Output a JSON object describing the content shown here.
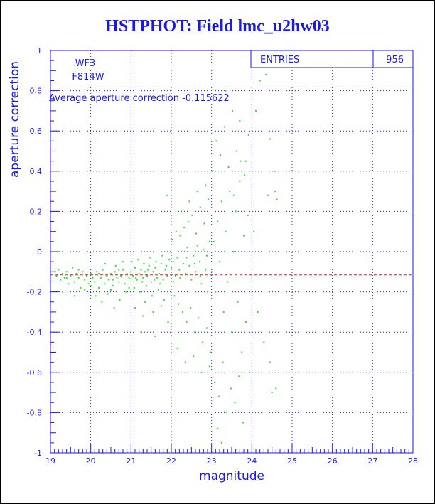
{
  "chart_data": {
    "type": "scatter",
    "title": "HSTPHOT: Field lmc_u2hw03",
    "xlabel": "magnitude",
    "ylabel": "aperture correction",
    "xlim": [
      19,
      28
    ],
    "ylim": [
      -1,
      1
    ],
    "xticks": [
      "19",
      "20",
      "21",
      "22",
      "23",
      "24",
      "25",
      "26",
      "27",
      "28"
    ],
    "yticks": [
      "-1",
      "-0.8",
      "-0.6",
      "-0.4",
      "-0.2",
      "0",
      "0.2",
      "0.4",
      "0.6",
      "0.8",
      "1"
    ],
    "grid": true,
    "camera": "WF3",
    "filter": "F814W",
    "average_label": "Average aperture correction",
    "average_value": -0.115622,
    "average_text": "-0.115622",
    "entries_label": "ENTRIES",
    "entries_value": "956",
    "colors": {
      "points": "#22e622",
      "text": "#1a1ae6",
      "average_line": "#cc2222",
      "grid": "#1a1ae6"
    },
    "points": [
      [
        19.1,
        -0.1
      ],
      [
        19.15,
        -0.12
      ],
      [
        19.2,
        -0.09
      ],
      [
        19.25,
        -0.14
      ],
      [
        19.3,
        -0.11
      ],
      [
        19.35,
        -0.13
      ],
      [
        19.4,
        -0.1
      ],
      [
        19.45,
        -0.16
      ],
      [
        19.5,
        -0.12
      ],
      [
        19.55,
        -0.08
      ],
      [
        19.6,
        -0.15
      ],
      [
        19.65,
        -0.11
      ],
      [
        19.7,
        -0.13
      ],
      [
        19.75,
        -0.18
      ],
      [
        19.8,
        -0.1
      ],
      [
        19.85,
        -0.14
      ],
      [
        19.9,
        -0.12
      ],
      [
        19.95,
        -0.16
      ],
      [
        20.0,
        -0.11
      ],
      [
        20.05,
        -0.13
      ],
      [
        19.3,
        -0.2
      ],
      [
        19.6,
        -0.22
      ],
      [
        19.85,
        -0.19
      ],
      [
        20.1,
        -0.15
      ],
      [
        20.15,
        -0.1
      ],
      [
        20.2,
        -0.18
      ],
      [
        20.25,
        -0.13
      ],
      [
        20.3,
        -0.09
      ],
      [
        20.35,
        -0.16
      ],
      [
        20.4,
        -0.12
      ],
      [
        20.45,
        -0.14
      ],
      [
        20.5,
        -0.11
      ],
      [
        20.55,
        -0.17
      ],
      [
        20.6,
        -0.1
      ],
      [
        20.65,
        -0.13
      ],
      [
        20.7,
        -0.15
      ],
      [
        20.75,
        -0.12
      ],
      [
        20.8,
        -0.09
      ],
      [
        20.85,
        -0.16
      ],
      [
        20.9,
        -0.11
      ],
      [
        20.12,
        -0.22
      ],
      [
        20.28,
        -0.25
      ],
      [
        20.42,
        -0.21
      ],
      [
        20.58,
        -0.28
      ],
      [
        20.72,
        -0.24
      ],
      [
        20.88,
        -0.2
      ],
      [
        20.35,
        -0.06
      ],
      [
        20.62,
        -0.07
      ],
      [
        20.8,
        -0.05
      ],
      [
        20.5,
        -0.19
      ],
      [
        20.95,
        -0.13
      ],
      [
        21.0,
        -0.1
      ],
      [
        21.05,
        -0.12
      ],
      [
        21.1,
        -0.08
      ],
      [
        21.15,
        -0.14
      ],
      [
        21.2,
        -0.11
      ],
      [
        21.25,
        -0.09
      ],
      [
        21.3,
        -0.13
      ],
      [
        21.35,
        -0.1
      ],
      [
        21.4,
        -0.12
      ],
      [
        21.45,
        -0.07
      ],
      [
        21.5,
        -0.15
      ],
      [
        21.55,
        -0.1
      ],
      [
        21.6,
        -0.08
      ],
      [
        21.65,
        -0.13
      ],
      [
        21.7,
        -0.11
      ],
      [
        21.75,
        -0.06
      ],
      [
        21.8,
        -0.14
      ],
      [
        21.85,
        -0.09
      ],
      [
        21.9,
        -0.12
      ],
      [
        21.02,
        -0.05
      ],
      [
        21.18,
        -0.04
      ],
      [
        21.32,
        -0.06
      ],
      [
        21.48,
        -0.03
      ],
      [
        21.62,
        -0.05
      ],
      [
        21.78,
        -0.02
      ],
      [
        21.95,
        -0.04
      ],
      [
        21.08,
        -0.18
      ],
      [
        21.22,
        -0.2
      ],
      [
        21.38,
        -0.17
      ],
      [
        21.52,
        -0.22
      ],
      [
        21.68,
        -0.19
      ],
      [
        21.82,
        -0.24
      ],
      [
        21.1,
        -0.28
      ],
      [
        21.3,
        -0.32
      ],
      [
        21.55,
        -0.3
      ],
      [
        21.75,
        -0.27
      ],
      [
        21.92,
        -0.35
      ],
      [
        21.25,
        -0.4
      ],
      [
        21.6,
        -0.42
      ],
      [
        22.0,
        -0.08
      ],
      [
        22.05,
        -0.05
      ],
      [
        22.1,
        -0.12
      ],
      [
        22.15,
        -0.03
      ],
      [
        22.2,
        -0.09
      ],
      [
        22.25,
        0.0
      ],
      [
        22.3,
        -0.06
      ],
      [
        22.35,
        -0.11
      ],
      [
        22.4,
        0.02
      ],
      [
        22.45,
        -0.07
      ],
      [
        22.5,
        -0.14
      ],
      [
        22.55,
        -0.02
      ],
      [
        22.6,
        -0.1
      ],
      [
        22.65,
        0.03
      ],
      [
        22.7,
        -0.05
      ],
      [
        22.75,
        -0.16
      ],
      [
        22.8,
        0.01
      ],
      [
        22.85,
        -0.09
      ],
      [
        22.9,
        -0.2
      ],
      [
        22.95,
        0.05
      ],
      [
        22.02,
        0.06
      ],
      [
        22.12,
        0.1
      ],
      [
        22.22,
        0.08
      ],
      [
        22.32,
        0.12
      ],
      [
        22.42,
        0.15
      ],
      [
        22.52,
        0.18
      ],
      [
        22.62,
        0.09
      ],
      [
        22.72,
        0.22
      ],
      [
        22.82,
        0.14
      ],
      [
        22.92,
        0.26
      ],
      [
        22.08,
        -0.22
      ],
      [
        22.18,
        -0.26
      ],
      [
        22.28,
        -0.3
      ],
      [
        22.38,
        -0.35
      ],
      [
        22.48,
        -0.28
      ],
      [
        22.58,
        -0.4
      ],
      [
        22.68,
        -0.33
      ],
      [
        22.78,
        -0.45
      ],
      [
        22.88,
        -0.38
      ],
      [
        22.98,
        -0.5
      ],
      [
        22.15,
        -0.48
      ],
      [
        22.35,
        -0.55
      ],
      [
        22.55,
        -0.52
      ],
      [
        22.75,
        -0.6
      ],
      [
        22.95,
        -0.57
      ],
      [
        22.25,
        0.2
      ],
      [
        22.45,
        0.25
      ],
      [
        22.65,
        0.3
      ],
      [
        22.85,
        0.33
      ],
      [
        21.9,
        0.28
      ],
      [
        23.0,
        -0.1
      ],
      [
        23.05,
        0.05
      ],
      [
        23.1,
        -0.2
      ],
      [
        23.15,
        0.15
      ],
      [
        23.2,
        -0.05
      ],
      [
        23.25,
        0.25
      ],
      [
        23.3,
        -0.3
      ],
      [
        23.35,
        0.1
      ],
      [
        23.4,
        -0.15
      ],
      [
        23.45,
        0.3
      ],
      [
        23.5,
        -0.4
      ],
      [
        23.55,
        0.0
      ],
      [
        23.6,
        0.2
      ],
      [
        23.65,
        -0.25
      ],
      [
        23.7,
        0.35
      ],
      [
        23.75,
        -0.5
      ],
      [
        23.8,
        0.08
      ],
      [
        23.85,
        -0.35
      ],
      [
        23.9,
        0.18
      ],
      [
        23.95,
        -0.6
      ],
      [
        23.02,
        0.4
      ],
      [
        23.12,
        0.55
      ],
      [
        23.22,
        0.48
      ],
      [
        23.32,
        0.62
      ],
      [
        23.42,
        0.42
      ],
      [
        23.52,
        0.7
      ],
      [
        23.62,
        0.5
      ],
      [
        23.72,
        0.45
      ],
      [
        23.82,
        0.38
      ],
      [
        23.92,
        0.58
      ],
      [
        23.08,
        -0.65
      ],
      [
        23.18,
        -0.72
      ],
      [
        23.28,
        -0.55
      ],
      [
        23.38,
        -0.8
      ],
      [
        23.48,
        -0.68
      ],
      [
        23.58,
        -0.75
      ],
      [
        23.68,
        -0.62
      ],
      [
        23.78,
        -0.85
      ],
      [
        23.15,
        -0.88
      ],
      [
        23.25,
        -0.95
      ],
      [
        23.2,
        0.75
      ],
      [
        23.35,
        0.8
      ],
      [
        23.7,
        0.65
      ],
      [
        23.55,
        0.28
      ],
      [
        23.85,
        0.45
      ],
      [
        24.1,
        0.7
      ],
      [
        24.2,
        0.85
      ],
      [
        24.35,
        0.88
      ],
      [
        24.45,
        0.56
      ],
      [
        24.55,
        0.4
      ],
      [
        24.15,
        -0.3
      ],
      [
        24.3,
        -0.45
      ],
      [
        24.45,
        -0.55
      ],
      [
        24.6,
        -0.68
      ],
      [
        24.25,
        -0.8
      ],
      [
        24.5,
        -0.7
      ],
      [
        24.4,
        0.28
      ],
      [
        24.58,
        0.3
      ],
      [
        24.62,
        0.26
      ],
      [
        24.05,
        0.1
      ],
      [
        19.4,
        -0.13
      ],
      [
        19.7,
        -0.09
      ],
      [
        20.0,
        -0.17
      ],
      [
        20.2,
        -0.11
      ],
      [
        20.55,
        -0.14
      ],
      [
        20.7,
        -0.09
      ],
      [
        20.95,
        -0.18
      ],
      [
        21.12,
        -0.13
      ],
      [
        21.28,
        -0.15
      ],
      [
        21.42,
        -0.09
      ],
      [
        21.58,
        -0.14
      ],
      [
        21.72,
        -0.16
      ],
      [
        21.88,
        -0.07
      ],
      [
        22.05,
        -0.15
      ],
      [
        22.22,
        -0.13
      ],
      [
        22.38,
        -0.03
      ],
      [
        22.58,
        -0.06
      ],
      [
        22.72,
        -0.12
      ],
      [
        22.88,
        -0.02
      ],
      [
        21.35,
        -0.25
      ]
    ]
  }
}
